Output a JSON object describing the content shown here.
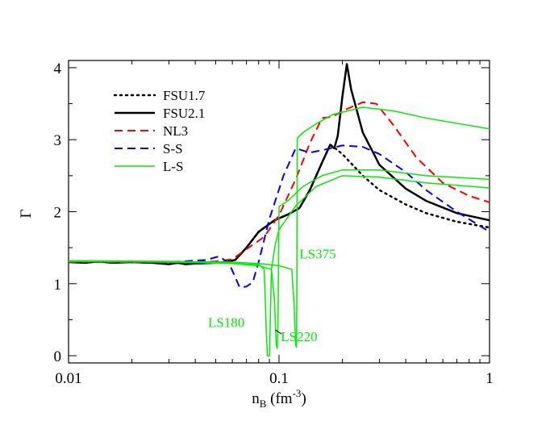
{
  "chart_data": {
    "type": "line",
    "title": "",
    "xlabel": {
      "main": "n",
      "sub": "B",
      "unit_pre": " (fm",
      "unit_sup": "-3",
      "unit_post": ")"
    },
    "ylabel": "Γ",
    "xscale": "log",
    "xlim": [
      0.01,
      1
    ],
    "ylim": [
      -0.1,
      4.1
    ],
    "x_ticks": [
      0.01,
      0.1,
      1
    ],
    "x_tick_labels": [
      "0.01",
      "0.1",
      "1"
    ],
    "y_ticks": [
      0,
      1,
      2,
      3,
      4
    ],
    "y_tick_labels": [
      "0",
      "1",
      "2",
      "3",
      "4"
    ],
    "grid": false,
    "legend_position": "top-left",
    "series": [
      {
        "name": "FSU1.7",
        "color": "#000000",
        "dash": "dotted",
        "width": 2.5,
        "points": [
          [
            0.01,
            1.31
          ],
          [
            0.02,
            1.3
          ],
          [
            0.04,
            1.28
          ],
          [
            0.055,
            1.3
          ],
          [
            0.062,
            1.33
          ],
          [
            0.07,
            1.5
          ],
          [
            0.08,
            1.72
          ],
          [
            0.095,
            1.88
          ],
          [
            0.11,
            1.96
          ],
          [
            0.125,
            2.05
          ],
          [
            0.14,
            2.3
          ],
          [
            0.16,
            2.68
          ],
          [
            0.175,
            2.93
          ],
          [
            0.185,
            2.88
          ],
          [
            0.2,
            2.8
          ],
          [
            0.25,
            2.5
          ],
          [
            0.3,
            2.3
          ],
          [
            0.4,
            2.1
          ],
          [
            0.5,
            1.98
          ],
          [
            0.7,
            1.86
          ],
          [
            1.0,
            1.78
          ]
        ]
      },
      {
        "name": "FSU2.1",
        "color": "#000000",
        "dash": "solid",
        "width": 2.5,
        "points": [
          [
            0.01,
            1.3
          ],
          [
            0.012,
            1.29
          ],
          [
            0.014,
            1.31
          ],
          [
            0.016,
            1.29
          ],
          [
            0.02,
            1.3
          ],
          [
            0.025,
            1.29
          ],
          [
            0.03,
            1.27
          ],
          [
            0.033,
            1.29
          ],
          [
            0.036,
            1.27
          ],
          [
            0.04,
            1.28
          ],
          [
            0.05,
            1.29
          ],
          [
            0.055,
            1.3
          ],
          [
            0.062,
            1.33
          ],
          [
            0.07,
            1.5
          ],
          [
            0.08,
            1.72
          ],
          [
            0.095,
            1.88
          ],
          [
            0.11,
            1.96
          ],
          [
            0.125,
            2.05
          ],
          [
            0.14,
            2.3
          ],
          [
            0.16,
            2.68
          ],
          [
            0.175,
            2.93
          ],
          [
            0.183,
            2.88
          ],
          [
            0.19,
            3.05
          ],
          [
            0.2,
            3.6
          ],
          [
            0.21,
            4.05
          ],
          [
            0.22,
            3.7
          ],
          [
            0.25,
            3.1
          ],
          [
            0.3,
            2.65
          ],
          [
            0.4,
            2.32
          ],
          [
            0.5,
            2.15
          ],
          [
            0.7,
            1.98
          ],
          [
            1.0,
            1.88
          ]
        ]
      },
      {
        "name": "NL3",
        "color": "#ff0000",
        "dash": "dashed",
        "width": 2,
        "points": [
          [
            0.01,
            1.3
          ],
          [
            0.03,
            1.3
          ],
          [
            0.05,
            1.31
          ],
          [
            0.06,
            1.34
          ],
          [
            0.07,
            1.48
          ],
          [
            0.085,
            1.65
          ],
          [
            0.1,
            1.95
          ],
          [
            0.12,
            2.45
          ],
          [
            0.14,
            2.95
          ],
          [
            0.16,
            3.3
          ],
          [
            0.18,
            3.32
          ],
          [
            0.2,
            3.4
          ],
          [
            0.25,
            3.52
          ],
          [
            0.29,
            3.5
          ],
          [
            0.35,
            3.2
          ],
          [
            0.45,
            2.75
          ],
          [
            0.6,
            2.4
          ],
          [
            0.8,
            2.22
          ],
          [
            1.0,
            2.13
          ]
        ]
      },
      {
        "name": "S-S",
        "color": "#0000ff",
        "dash": "dashed",
        "width": 2,
        "points": [
          [
            0.01,
            1.31
          ],
          [
            0.03,
            1.3
          ],
          [
            0.045,
            1.33
          ],
          [
            0.052,
            1.38
          ],
          [
            0.058,
            1.28
          ],
          [
            0.065,
            0.95
          ],
          [
            0.07,
            0.96
          ],
          [
            0.075,
            1.02
          ],
          [
            0.08,
            1.3
          ],
          [
            0.09,
            1.9
          ],
          [
            0.105,
            2.5
          ],
          [
            0.12,
            2.88
          ],
          [
            0.14,
            2.82
          ],
          [
            0.17,
            2.87
          ],
          [
            0.2,
            2.92
          ],
          [
            0.25,
            2.9
          ],
          [
            0.3,
            2.8
          ],
          [
            0.4,
            2.55
          ],
          [
            0.5,
            2.3
          ],
          [
            0.7,
            2.0
          ],
          [
            1.0,
            1.72
          ]
        ]
      },
      {
        "name": "L-S",
        "color": "#00ee00",
        "dash": "solid",
        "width": 1.5,
        "legend": true,
        "points": [
          [
            0.01,
            1.31
          ],
          [
            0.03,
            1.3
          ],
          [
            0.05,
            1.3
          ],
          [
            0.07,
            1.27
          ],
          [
            0.08,
            1.27
          ],
          [
            0.085,
            1.2
          ],
          [
            0.087,
            0.35
          ],
          [
            0.088,
            0.0
          ],
          [
            0.09,
            0.0
          ],
          [
            0.091,
            0.55
          ],
          [
            0.092,
            1.2
          ],
          [
            0.096,
            1.55
          ],
          [
            0.1,
            1.75
          ],
          [
            0.12,
            2.08
          ],
          [
            0.15,
            2.35
          ],
          [
            0.2,
            2.5
          ],
          [
            0.3,
            2.48
          ],
          [
            0.5,
            2.4
          ],
          [
            1.0,
            2.33
          ]
        ]
      },
      {
        "name": "LS220",
        "color": "#00ee00",
        "dash": "solid",
        "width": 1.5,
        "legend": false,
        "points": [
          [
            0.01,
            1.31
          ],
          [
            0.03,
            1.3
          ],
          [
            0.06,
            1.28
          ],
          [
            0.08,
            1.25
          ],
          [
            0.092,
            1.2
          ],
          [
            0.095,
            0.8
          ],
          [
            0.097,
            0.15
          ],
          [
            0.098,
            0.1
          ],
          [
            0.099,
            0.6
          ],
          [
            0.1,
            2.07
          ],
          [
            0.11,
            2.15
          ],
          [
            0.13,
            2.35
          ],
          [
            0.16,
            2.5
          ],
          [
            0.2,
            2.58
          ],
          [
            0.3,
            2.58
          ],
          [
            0.5,
            2.5
          ],
          [
            1.0,
            2.45
          ]
        ]
      },
      {
        "name": "LS375",
        "color": "#00ee00",
        "dash": "solid",
        "width": 1.5,
        "legend": false,
        "points": [
          [
            0.01,
            1.32
          ],
          [
            0.03,
            1.31
          ],
          [
            0.06,
            1.3
          ],
          [
            0.08,
            1.28
          ],
          [
            0.1,
            1.25
          ],
          [
            0.115,
            1.2
          ],
          [
            0.118,
            0.7
          ],
          [
            0.12,
            0.15
          ],
          [
            0.121,
            0.12
          ],
          [
            0.1215,
            0.8
          ],
          [
            0.122,
            3.02
          ],
          [
            0.13,
            3.1
          ],
          [
            0.15,
            3.22
          ],
          [
            0.18,
            3.35
          ],
          [
            0.25,
            3.45
          ],
          [
            0.35,
            3.4
          ],
          [
            0.5,
            3.3
          ],
          [
            1.0,
            3.15
          ]
        ]
      }
    ],
    "annotations": [
      {
        "name": "ls375-label",
        "text": "LS375",
        "x": 0.125,
        "y": 1.35
      },
      {
        "name": "ls180-label",
        "text": "LS180",
        "x": 0.046,
        "y": 0.4
      },
      {
        "name": "ls220-label",
        "text": "LS220",
        "x": 0.102,
        "y": 0.2
      }
    ],
    "pointer": {
      "from": [
        0.096,
        0.36
      ],
      "to": [
        0.103,
        0.3
      ]
    }
  }
}
